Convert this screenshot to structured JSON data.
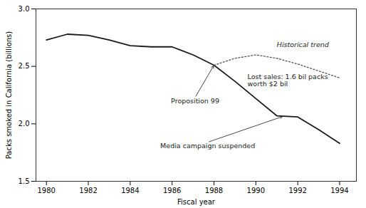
{
  "chart_data": {
    "type": "line",
    "xlabel": "Fiscal year",
    "ylabel": "Packs smoked in California (billions)",
    "series": [
      {
        "x": [
          1980,
          1981,
          1982,
          1983,
          1984,
          1985,
          1986,
          1987,
          1988,
          1989,
          1990,
          1991,
          1992,
          1993,
          1994
        ],
        "values": [
          2.73,
          2.78,
          2.77,
          2.73,
          2.68,
          2.67,
          2.67,
          2.6,
          2.51,
          2.37,
          2.22,
          2.07,
          2.06,
          1.95,
          1.83
        ],
        "color": "#1a1a1a",
        "line_style": "solid"
      },
      {
        "x": [
          1988,
          1989,
          1990,
          1991,
          1992,
          1993,
          1994
        ],
        "values": [
          2.51,
          2.57,
          2.6,
          2.57,
          2.52,
          2.46,
          2.4
        ],
        "color": "#555555",
        "line_style": "dotted"
      }
    ],
    "xlim": [
      1979.5,
      1994.8
    ],
    "ylim": [
      1.5,
      3.0
    ],
    "xticks": [
      1980,
      1982,
      1984,
      1986,
      1988,
      1990,
      1992,
      1994
    ],
    "yticks": [
      1.5,
      {
        "value": 2,
        "label": "2.0"
      },
      2.5,
      {
        "value": 3,
        "label": "3.0"
      }
    ],
    "grid": false,
    "annotations": [
      {
        "text": "Proposition 99",
        "x": 1987.1,
        "y": 2.23,
        "arrow_x": 1988,
        "arrow_y": 2.51
      },
      {
        "text": "Historical trend",
        "x": 1991.0,
        "y": 2.67
      },
      {
        "text": "Lost sales: 1.6 bil packs\nworth $2 bil",
        "x": 1989.6,
        "y": 2.43
      },
      {
        "text": "Media campaign suspended",
        "x": 1987.7,
        "y": 1.84,
        "arrow_x": 1991.3,
        "arrow_y": 2.065
      }
    ]
  }
}
